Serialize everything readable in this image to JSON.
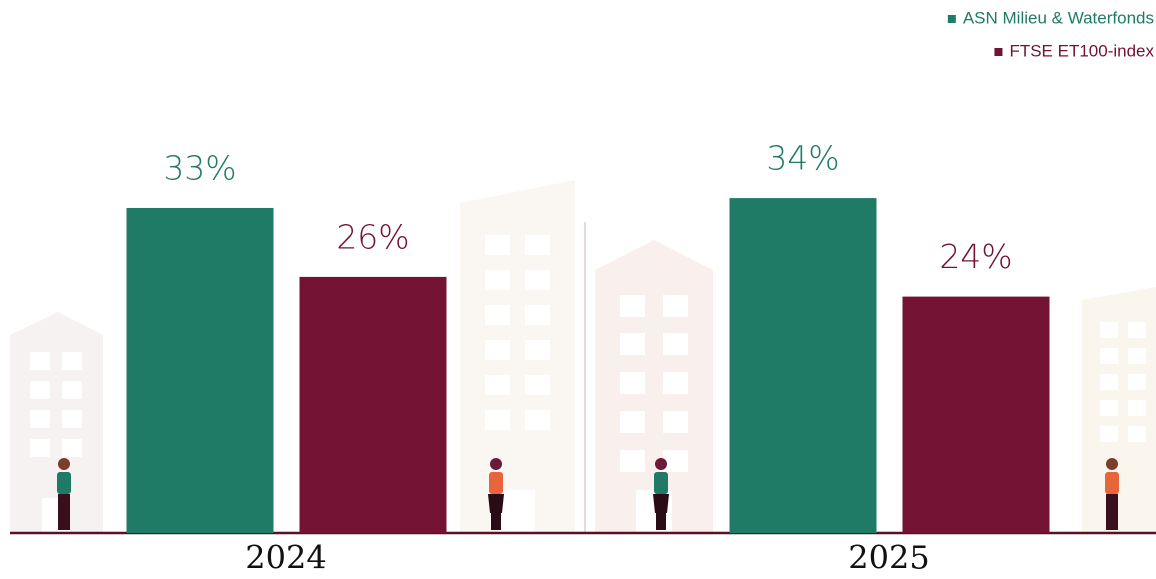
{
  "chart_data": {
    "type": "bar",
    "categories": [
      "2024",
      "2025"
    ],
    "series": [
      {
        "name": "ASN Milieu & Waterfonds",
        "color": "#1f7a66",
        "values": [
          33,
          34
        ],
        "value_labels": [
          "33%",
          "34%"
        ]
      },
      {
        "name": "FTSE ET100-index",
        "color": "#731233",
        "values": [
          26,
          24
        ],
        "value_labels": [
          "26%",
          "24%"
        ]
      }
    ],
    "legend": "top-right"
  }
}
